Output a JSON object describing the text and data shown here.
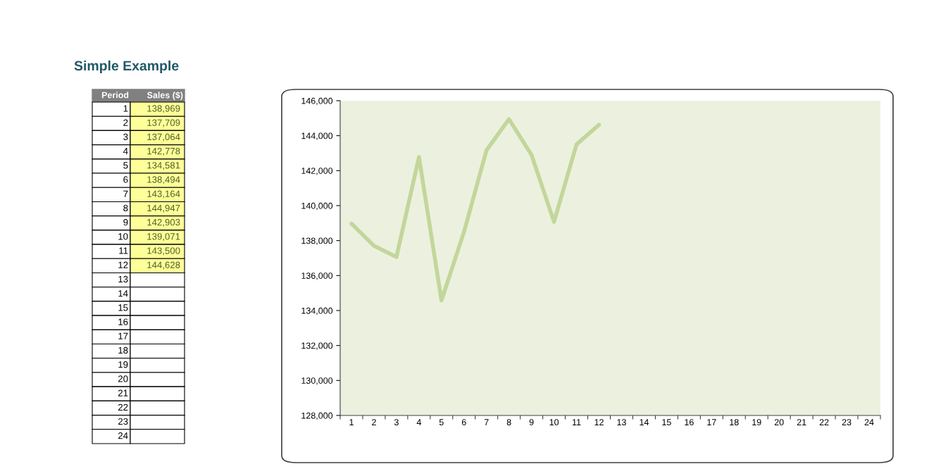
{
  "chart_data": {
    "type": "line",
    "title": "Simple Example",
    "categories": [
      "1",
      "2",
      "3",
      "4",
      "5",
      "6",
      "7",
      "8",
      "9",
      "10",
      "11",
      "12",
      "13",
      "14",
      "15",
      "16",
      "17",
      "18",
      "19",
      "20",
      "21",
      "22",
      "23",
      "24"
    ],
    "series": [
      {
        "color": "#c3d69b",
        "values": [
          138969,
          137709,
          137064,
          142778,
          134581,
          138494,
          143164,
          144947,
          142903,
          139071,
          143500,
          144628,
          null,
          null,
          null,
          null,
          null,
          null,
          null,
          null,
          null,
          null,
          null,
          null
        ]
      }
    ],
    "annotations": [
      "Period",
      "Sales ($)",
      "138,969",
      "137,709",
      "137,064",
      "142,778",
      "134,581",
      "138,494",
      "143,164",
      "144,947",
      "142,903",
      "139,071",
      "143,500",
      "144,628"
    ],
    "ylim": [
      128000,
      146000
    ],
    "yticks": [
      {
        "value": 128000,
        "label": "128,000"
      },
      {
        "value": 130000,
        "label": "130,000"
      },
      {
        "value": 132000,
        "label": "132,000"
      },
      {
        "value": 134000,
        "label": "134,000"
      },
      {
        "value": 136000,
        "label": "136,000"
      },
      {
        "value": 138000,
        "label": "138,000"
      },
      {
        "value": 140000,
        "label": "140,000"
      },
      {
        "value": 142000,
        "label": "142,000"
      },
      {
        "value": 144000,
        "label": "144,000"
      },
      {
        "value": 146000,
        "label": "146,000"
      }
    ],
    "grid": false,
    "legend": false,
    "marker": "none",
    "line_style": "solid"
  }
}
